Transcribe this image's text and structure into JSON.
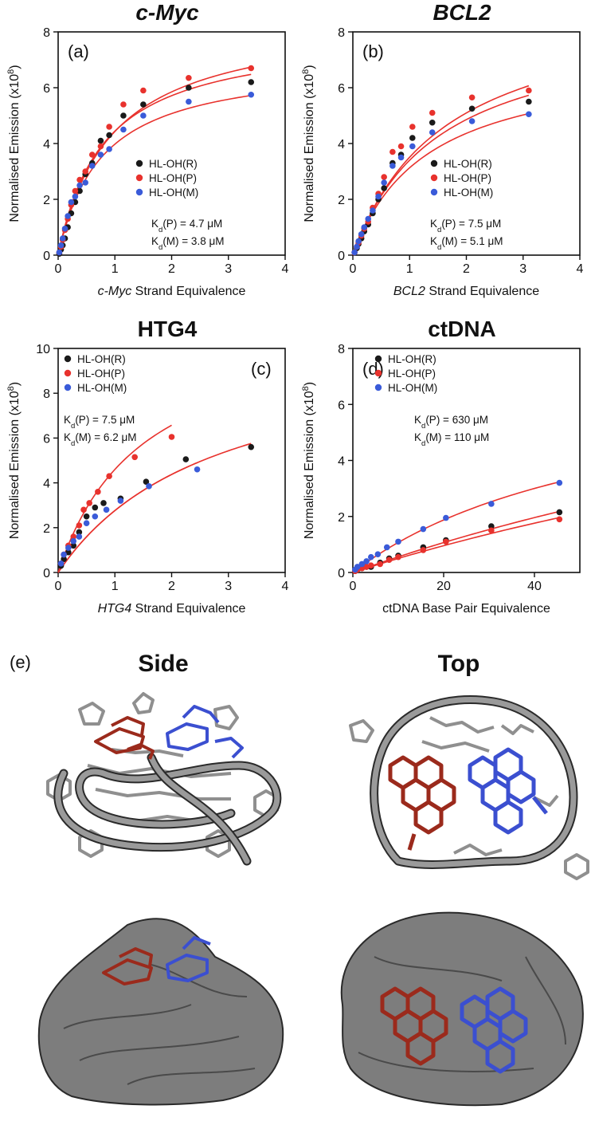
{
  "chart_data": [
    {
      "type": "scatter",
      "title": "c-Myc",
      "panel": "(a)",
      "xlabel_italic": "c-Myc",
      "xlabel_rest": " Strand Equivalence",
      "ylabel": "Normalised Emission (x10",
      "ylabel_sup": "8",
      "xlim": [
        0,
        4
      ],
      "ylim": [
        0,
        8
      ],
      "xticks": [
        "0",
        "1",
        "2",
        "3",
        "4"
      ],
      "yticks": [
        "0",
        "2",
        "4",
        "6",
        "8"
      ],
      "legend": "middle-right",
      "series": [
        {
          "name": "HL-OH(R)",
          "color": "#1a1a1a",
          "x": [
            0.02,
            0.05,
            0.08,
            0.12,
            0.17,
            0.23,
            0.3,
            0.38,
            0.48,
            0.6,
            0.75,
            0.9,
            1.15,
            1.5,
            2.3,
            3.4
          ],
          "y": [
            0.05,
            0.2,
            0.35,
            0.6,
            1.0,
            1.5,
            1.9,
            2.3,
            2.9,
            3.3,
            4.1,
            4.3,
            5.0,
            5.4,
            6.0,
            6.2
          ],
          "fit": {
            "bmax": 8.0,
            "kd": 0.8
          }
        },
        {
          "name": "HL-OH(P)",
          "color": "#e8322d",
          "x": [
            0.02,
            0.05,
            0.08,
            0.12,
            0.17,
            0.23,
            0.3,
            0.38,
            0.48,
            0.6,
            0.75,
            0.9,
            1.15,
            1.5,
            2.3,
            3.4
          ],
          "y": [
            0.1,
            0.3,
            0.55,
            0.9,
            1.3,
            1.8,
            2.3,
            2.7,
            3.0,
            3.6,
            3.9,
            4.6,
            5.4,
            5.9,
            6.35,
            6.7
          ],
          "fit": {
            "bmax": 8.6,
            "kd": 0.94
          }
        },
        {
          "name": "HL-OH(M)",
          "color": "#3a5bd9",
          "x": [
            0.02,
            0.05,
            0.08,
            0.12,
            0.17,
            0.23,
            0.3,
            0.38,
            0.48,
            0.6,
            0.75,
            0.9,
            1.15,
            1.5,
            2.3,
            3.4
          ],
          "y": [
            0.1,
            0.35,
            0.6,
            0.95,
            1.4,
            1.9,
            2.1,
            2.5,
            2.6,
            3.2,
            3.6,
            3.8,
            4.5,
            5.0,
            5.5,
            5.75
          ],
          "fit": {
            "bmax": 7.0,
            "kd": 0.76
          }
        }
      ],
      "annotations": [
        {
          "main": "K",
          "sub": "d",
          "rest": "(P) = 4.7 μM"
        },
        {
          "main": "K",
          "sub": "d",
          "rest": "(M) = 3.8 μM"
        }
      ]
    },
    {
      "type": "scatter",
      "title": "BCL2",
      "panel": "(b)",
      "xlabel_italic": "BCL2",
      "xlabel_rest": " Strand Equivalence",
      "ylabel": "Normalised Emission (x10",
      "ylabel_sup": "8",
      "xlim": [
        0,
        4
      ],
      "ylim": [
        0,
        8
      ],
      "xticks": [
        "0",
        "1",
        "2",
        "3",
        "4"
      ],
      "yticks": [
        "0",
        "2",
        "4",
        "6",
        "8"
      ],
      "legend": "middle-right",
      "series": [
        {
          "name": "HL-OH(R)",
          "color": "#1a1a1a",
          "x": [
            0.03,
            0.07,
            0.1,
            0.15,
            0.2,
            0.27,
            0.35,
            0.45,
            0.55,
            0.7,
            0.85,
            1.05,
            1.4,
            2.1,
            3.1
          ],
          "y": [
            0.1,
            0.25,
            0.4,
            0.6,
            0.85,
            1.1,
            1.5,
            2.0,
            2.4,
            3.3,
            3.6,
            4.2,
            4.75,
            5.25,
            5.5
          ],
          "fit": {
            "bmax": 8.5,
            "kd": 1.5
          }
        },
        {
          "name": "HL-OH(P)",
          "color": "#e8322d",
          "x": [
            0.03,
            0.07,
            0.1,
            0.15,
            0.2,
            0.27,
            0.35,
            0.45,
            0.55,
            0.7,
            0.85,
            1.05,
            1.4,
            2.1,
            3.1
          ],
          "y": [
            0.1,
            0.3,
            0.45,
            0.7,
            0.95,
            1.2,
            1.7,
            2.2,
            2.8,
            3.7,
            3.9,
            4.6,
            5.1,
            5.65,
            5.9
          ],
          "fit": {
            "bmax": 9.3,
            "kd": 1.65
          }
        },
        {
          "name": "HL-OH(M)",
          "color": "#3a5bd9",
          "x": [
            0.03,
            0.07,
            0.1,
            0.15,
            0.2,
            0.27,
            0.35,
            0.45,
            0.55,
            0.7,
            0.85,
            1.05,
            1.4,
            2.1,
            3.1
          ],
          "y": [
            0.1,
            0.3,
            0.5,
            0.75,
            1.0,
            1.3,
            1.6,
            2.1,
            2.6,
            3.2,
            3.5,
            3.9,
            4.4,
            4.8,
            5.05
          ],
          "fit": {
            "bmax": 7.2,
            "kd": 1.3
          }
        }
      ],
      "annotations": [
        {
          "main": "K",
          "sub": "d",
          "rest": "(P) = 7.5 μM"
        },
        {
          "main": "K",
          "sub": "d",
          "rest": "(M) = 5.1 μM"
        }
      ]
    },
    {
      "type": "scatter",
      "title": "HTG4",
      "panel": "(c)",
      "xlabel_italic": "HTG4",
      "xlabel_rest": "  Strand Equivalence",
      "ylabel": "Normalised Emission (x10",
      "ylabel_sup": "8",
      "xlim": [
        0,
        4
      ],
      "ylim": [
        0,
        10
      ],
      "xticks": [
        "0",
        "1",
        "2",
        "3",
        "4"
      ],
      "yticks": [
        "0",
        "2",
        "4",
        "6",
        "8",
        "10"
      ],
      "legend": "top-left",
      "series": [
        {
          "name": "HL-OH(R)",
          "color": "#1a1a1a",
          "x": [
            0.05,
            0.1,
            0.18,
            0.27,
            0.37,
            0.5,
            0.65,
            0.8,
            1.1,
            1.55,
            2.25,
            3.4
          ],
          "y": [
            0.3,
            0.6,
            0.9,
            1.2,
            1.8,
            2.5,
            2.9,
            3.1,
            3.3,
            4.05,
            5.05,
            5.6
          ],
          "fit": {
            "bmax": 10.5,
            "kd": 2.8
          }
        },
        {
          "name": "HL-OH(P)",
          "color": "#e8322d",
          "x": [
            0.05,
            0.1,
            0.18,
            0.27,
            0.37,
            0.45,
            0.55,
            0.7,
            0.9,
            1.35,
            2.0
          ],
          "y": [
            0.4,
            0.8,
            1.2,
            1.6,
            2.1,
            2.8,
            3.1,
            3.6,
            4.3,
            5.15,
            6.05
          ],
          "fit": {
            "bmax": 11.5,
            "kd": 1.5
          }
        },
        {
          "name": "HL-OH(M)",
          "color": "#3a5bd9",
          "x": [
            0.05,
            0.1,
            0.18,
            0.27,
            0.37,
            0.5,
            0.65,
            0.85,
            1.1,
            1.6,
            2.45
          ],
          "y": [
            0.4,
            0.8,
            1.1,
            1.4,
            1.6,
            2.2,
            2.5,
            2.8,
            3.2,
            3.85,
            4.6
          ],
          "fit": {
            "bmax": 10.5,
            "kd": 2.8
          }
        }
      ],
      "annotations": [
        {
          "main": "K",
          "sub": "d",
          "rest": "(P) = 7.5 μM"
        },
        {
          "main": "K",
          "sub": "d",
          "rest": "(M) = 6.2 μM"
        }
      ]
    },
    {
      "type": "scatter",
      "title": "ctDNA",
      "panel": "(d)",
      "xlabel_italic": "",
      "xlabel_rest": "ctDNA Base Pair Equivalence",
      "ylabel": "Normalised Emission (x10",
      "ylabel_sup": "8",
      "xlim": [
        0,
        50
      ],
      "ylim": [
        0,
        8
      ],
      "xticks": [
        "0",
        "20",
        "40"
      ],
      "xtick_values": [
        0,
        20,
        40
      ],
      "yticks": [
        "0",
        "2",
        "4",
        "6",
        "8"
      ],
      "legend": "top-left",
      "series": [
        {
          "name": "HL-OH(R)",
          "color": "#1a1a1a",
          "x": [
            0.5,
            1.0,
            2.0,
            3.0,
            4.0,
            6.0,
            8.0,
            10.0,
            15.5,
            20.5,
            30.5,
            45.5
          ],
          "y": [
            0.05,
            0.1,
            0.15,
            0.2,
            0.2,
            0.35,
            0.5,
            0.6,
            0.9,
            1.15,
            1.65,
            2.15
          ],
          "fit": {
            "bmax": 12.0,
            "kd": 205
          }
        },
        {
          "name": "HL-OH(P)",
          "color": "#e8322d",
          "x": [
            0.5,
            1.0,
            2.0,
            3.0,
            4.0,
            6.0,
            8.0,
            10.0,
            15.5,
            20.5,
            30.5,
            45.5
          ],
          "y": [
            0.05,
            0.1,
            0.15,
            0.2,
            0.25,
            0.3,
            0.45,
            0.55,
            0.8,
            1.1,
            1.5,
            1.9
          ],
          "fit": {
            "bmax": 11.0,
            "kd": 210
          }
        },
        {
          "name": "HL-OH(M)",
          "color": "#3a5bd9",
          "x": [
            0.5,
            1.0,
            2.0,
            3.0,
            4.0,
            5.5,
            7.5,
            10.0,
            15.5,
            20.5,
            30.5,
            45.5
          ],
          "y": [
            0.1,
            0.2,
            0.3,
            0.4,
            0.55,
            0.65,
            0.9,
            1.1,
            1.55,
            1.95,
            2.45,
            3.2
          ],
          "fit": {
            "bmax": 7.5,
            "kd": 60
          }
        }
      ],
      "annotations": [
        {
          "main": "K",
          "sub": "d",
          "rest": "(P) = 630 μM"
        },
        {
          "main": "K",
          "sub": "d",
          "rest": "(M) = 110 μM"
        }
      ]
    }
  ],
  "structures": {
    "panel": "(e)",
    "side_title": "Side",
    "top_title": "Top",
    "colors": {
      "backbone": "#8f8f8f",
      "ligand_red": "#9b2a1c",
      "ligand_blue": "#3b4fd0",
      "surface": "#7d7d7d",
      "outline": "#2a2a2a"
    }
  }
}
